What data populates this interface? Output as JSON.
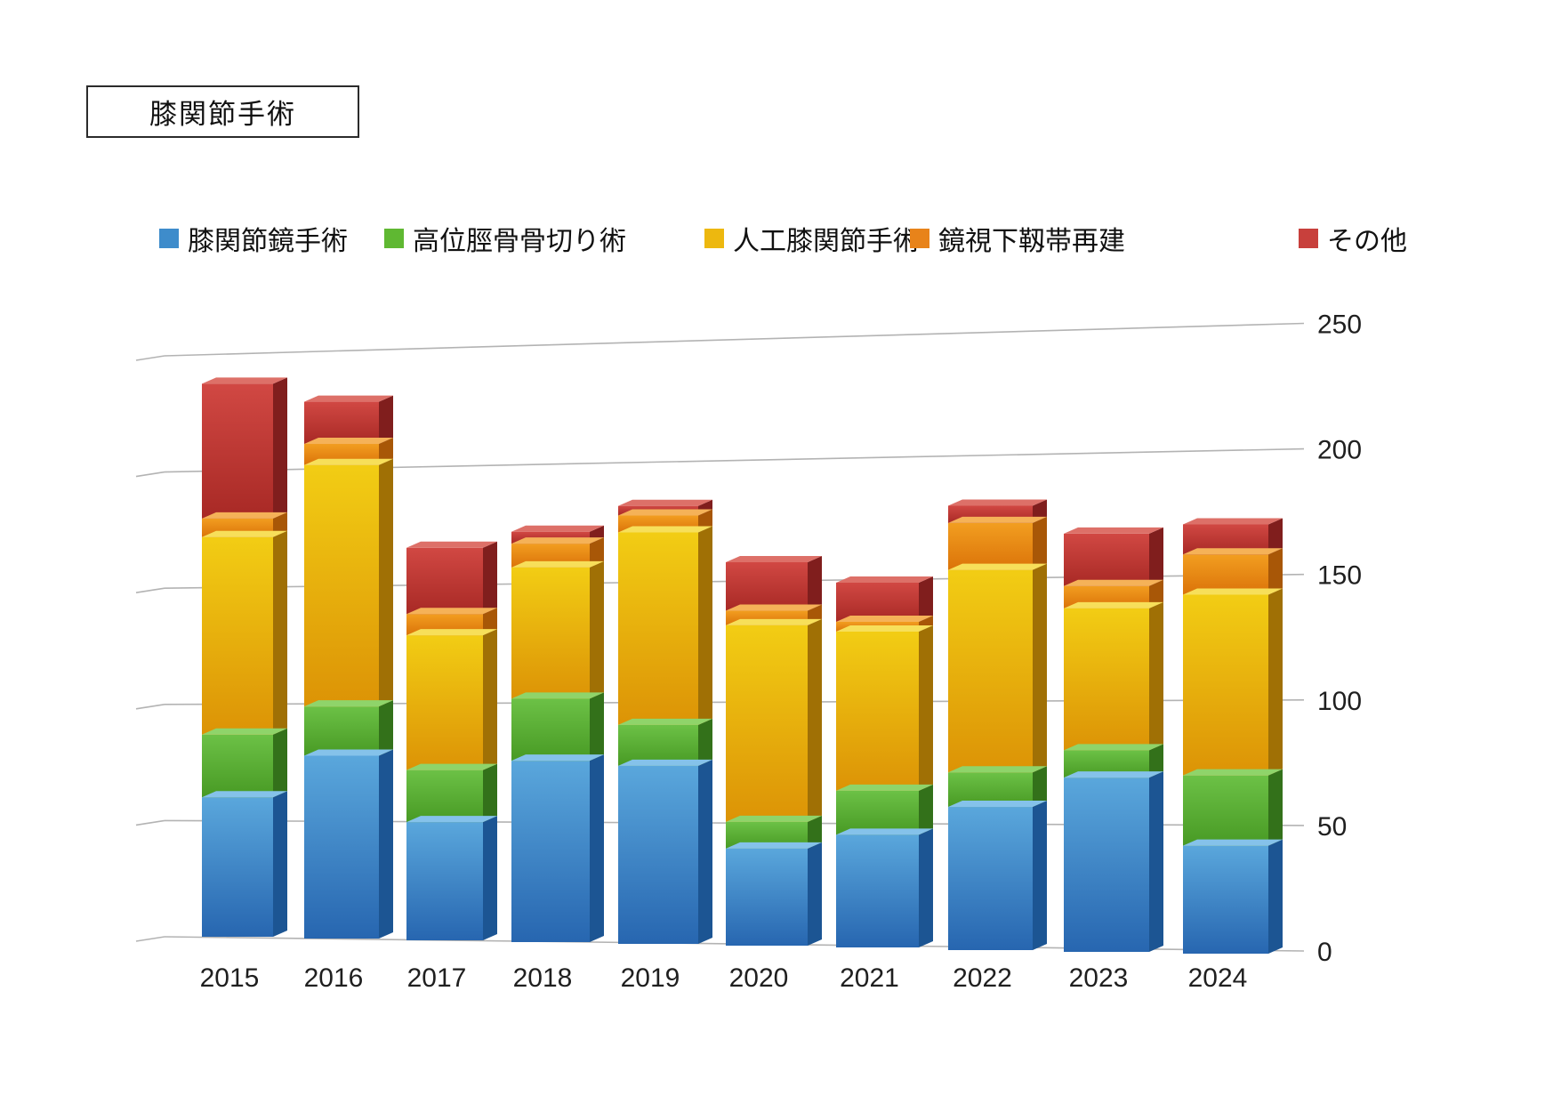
{
  "title": "膝関節手術",
  "chart_data": {
    "type": "bar",
    "stacked": true,
    "style": "3d-perspective",
    "title": "膝関節手術",
    "xlabel": "",
    "ylabel": "",
    "ylim": [
      0,
      250
    ],
    "yticks": [
      0,
      50,
      100,
      150,
      200,
      250
    ],
    "grid": true,
    "legend_position": "top",
    "categories": [
      "2015",
      "2016",
      "2017",
      "2018",
      "2019",
      "2020",
      "2021",
      "2022",
      "2023",
      "2024"
    ],
    "series": [
      {
        "name": "膝関節鏡手術",
        "color": "#3E8CCB",
        "values": [
          60,
          78,
          50,
          76,
          74,
          40,
          46,
          58,
          70,
          43
        ]
      },
      {
        "name": "高位脛骨骨切り術",
        "color": "#5FB832",
        "values": [
          27,
          21,
          22,
          26,
          17,
          11,
          18,
          14,
          11,
          28
        ]
      },
      {
        "name": "人工膝関節手術",
        "color": "#EDB80F",
        "values": [
          85,
          103,
          57,
          55,
          80,
          81,
          65,
          82,
          57,
          72
        ]
      },
      {
        "name": "鏡視下靱帯再建",
        "color": "#E8831A",
        "values": [
          8,
          9,
          9,
          10,
          7,
          6,
          4,
          19,
          9,
          16
        ]
      },
      {
        "name": "その他",
        "color": "#C8403C",
        "values": [
          58,
          18,
          28,
          5,
          4,
          20,
          16,
          7,
          21,
          12
        ]
      }
    ],
    "totals": [
      238,
      229,
      166,
      172,
      182,
      158,
      149,
      180,
      168,
      171
    ]
  }
}
